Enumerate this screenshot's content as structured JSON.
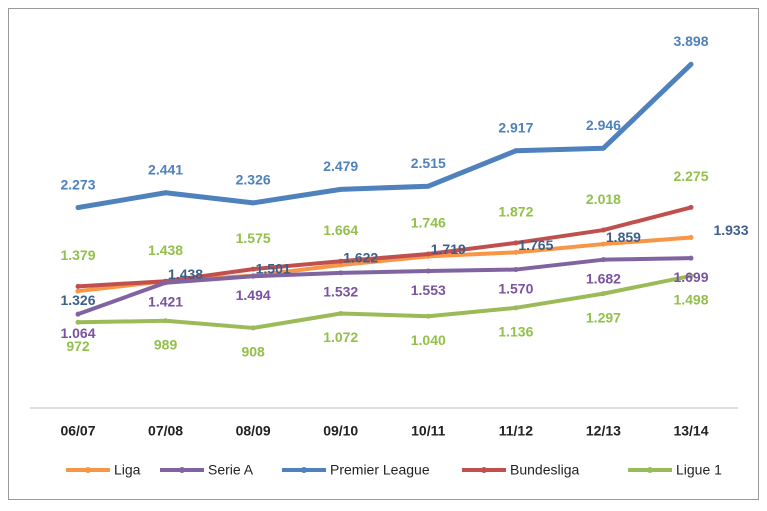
{
  "chart_data": {
    "type": "line",
    "categories": [
      "06/07",
      "07/08",
      "08/09",
      "09/10",
      "10/11",
      "11/12",
      "12/13",
      "13/14"
    ],
    "ylim": [
      0,
      4400
    ],
    "series": [
      {
        "name": "Liga",
        "color": "#f79646",
        "label_color": "#3d5f8a",
        "values": [
          1326,
          1438,
          1501,
          1622,
          1719,
          1765,
          1859,
          1933
        ],
        "value_labels": [
          "1.326",
          "1.438",
          "1.501",
          "1.622",
          "1.719",
          "1.765",
          "1.859",
          "1.933"
        ]
      },
      {
        "name": "Serie A",
        "color": "#8064a2",
        "label_color": "#7a52a0",
        "values": [
          1064,
          1421,
          1494,
          1532,
          1553,
          1570,
          1682,
          1699
        ],
        "value_labels": [
          "1.064",
          "1.421",
          "1.494",
          "1.532",
          "1.553",
          "1.570",
          "1.682",
          "1.699"
        ]
      },
      {
        "name": "Premier League",
        "color": "#4f81bd",
        "label_color": "#4f81bd",
        "values": [
          2273,
          2441,
          2326,
          2479,
          2515,
          2917,
          2946,
          3898
        ],
        "value_labels": [
          "2.273",
          "2.441",
          "2.326",
          "2.479",
          "2.515",
          "2.917",
          "2.946",
          "3.898"
        ]
      },
      {
        "name": "Bundesliga",
        "color": "#c0504d",
        "label_color": "#92c04a",
        "values": [
          1379,
          1438,
          1575,
          1664,
          1746,
          1872,
          2018,
          2275
        ],
        "value_labels": [
          "1.379",
          "1.438",
          "1.575",
          "1.664",
          "1.746",
          "1.872",
          "2.018",
          "2.275"
        ]
      },
      {
        "name": "Ligue 1",
        "color": "#9bbb59",
        "label_color": "#92c04a",
        "values": [
          972,
          989,
          908,
          1072,
          1040,
          1136,
          1297,
          1498
        ],
        "value_labels": [
          "972",
          "989",
          "908",
          "1.072",
          "1.040",
          "1.136",
          "1.297",
          "1.498"
        ]
      }
    ]
  }
}
